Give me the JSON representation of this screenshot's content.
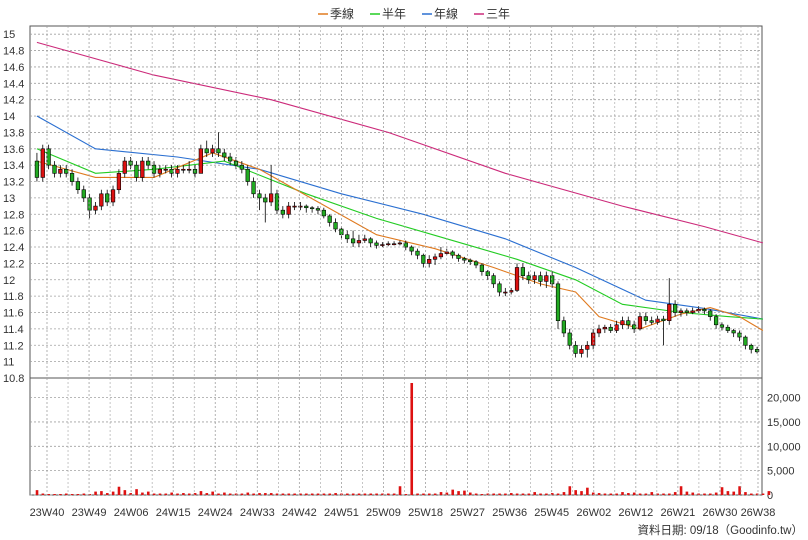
{
  "chart_data": {
    "type": "candlestick",
    "legend": {
      "placement": "top-center",
      "items": [
        {
          "label": "季線",
          "color": "#e07a1f"
        },
        {
          "label": "半年",
          "color": "#22cc22"
        },
        {
          "label": "年線",
          "color": "#2a6fd1"
        },
        {
          "label": "三年",
          "color": "#cc2a7a"
        }
      ]
    },
    "price_axis": {
      "ylim": [
        10.8,
        15.1
      ],
      "ticks": [
        "15",
        "14.8",
        "14.6",
        "14.4",
        "14.2",
        "14",
        "13.8",
        "13.6",
        "13.4",
        "13.2",
        "13",
        "12.8",
        "12.6",
        "12.4",
        "12.2",
        "12",
        "11.8",
        "11.6",
        "11.4",
        "11.2",
        "11",
        "10.8"
      ]
    },
    "volume_axis": {
      "ylim": [
        0,
        23000
      ],
      "ticks": [
        "20,000",
        "15,000",
        "10,000",
        "5,000",
        "0"
      ]
    },
    "x_ticks": [
      "23W40",
      "23W49",
      "24W06",
      "24W15",
      "24W24",
      "24W33",
      "24W42",
      "24W51",
      "25W09",
      "25W18",
      "25W27",
      "25W36",
      "25W45",
      "26W02",
      "26W12",
      "26W21",
      "26W30",
      "26W38"
    ],
    "colors": {
      "up": "#dd1111",
      "down": "#22aa22",
      "volume": "#dd1111",
      "grid": "#a0a0a0"
    },
    "grid": true,
    "footer": "資料日期: 09/18（Goodinfo.tw）",
    "candles": [
      [
        13.45,
        13.25,
        13.55,
        13.2
      ],
      [
        13.25,
        13.6,
        13.65,
        13.2
      ],
      [
        13.6,
        13.4,
        13.65,
        13.35
      ],
      [
        13.4,
        13.3,
        13.45,
        13.25
      ],
      [
        13.3,
        13.35,
        13.4,
        13.25
      ],
      [
        13.35,
        13.3,
        13.4,
        13.25
      ],
      [
        13.3,
        13.2,
        13.35,
        13.15
      ],
      [
        13.2,
        13.1,
        13.25,
        13.05
      ],
      [
        13.1,
        13.0,
        13.15,
        12.95
      ],
      [
        13.0,
        12.85,
        13.05,
        12.75
      ],
      [
        12.85,
        12.9,
        12.95,
        12.8
      ],
      [
        12.9,
        13.05,
        13.1,
        12.85
      ],
      [
        13.05,
        12.95,
        13.1,
        12.9
      ],
      [
        12.95,
        13.1,
        13.15,
        12.9
      ],
      [
        13.1,
        13.3,
        13.35,
        13.05
      ],
      [
        13.3,
        13.45,
        13.5,
        13.25
      ],
      [
        13.45,
        13.4,
        13.5,
        13.35
      ],
      [
        13.4,
        13.25,
        13.45,
        13.2
      ],
      [
        13.25,
        13.45,
        13.5,
        13.2
      ],
      [
        13.45,
        13.4,
        13.5,
        13.35
      ],
      [
        13.4,
        13.3,
        13.45,
        13.25
      ],
      [
        13.3,
        13.35,
        13.4,
        13.25
      ],
      [
        13.35,
        13.35,
        13.4,
        13.3
      ],
      [
        13.35,
        13.3,
        13.4,
        13.25
      ],
      [
        13.3,
        13.35,
        13.4,
        13.25
      ],
      [
        13.35,
        13.35,
        13.4,
        13.3
      ],
      [
        13.35,
        13.35,
        13.45,
        13.3
      ],
      [
        13.35,
        13.3,
        13.4,
        13.25
      ],
      [
        13.3,
        13.6,
        13.65,
        13.3
      ],
      [
        13.6,
        13.55,
        13.7,
        13.5
      ],
      [
        13.55,
        13.6,
        13.65,
        13.5
      ],
      [
        13.6,
        13.55,
        13.8,
        13.5
      ],
      [
        13.55,
        13.5,
        13.6,
        13.45
      ],
      [
        13.5,
        13.45,
        13.55,
        13.4
      ],
      [
        13.45,
        13.4,
        13.5,
        13.35
      ],
      [
        13.4,
        13.35,
        13.45,
        13.3
      ],
      [
        13.35,
        13.2,
        13.4,
        13.15
      ],
      [
        13.2,
        13.05,
        13.25,
        13.0
      ],
      [
        13.05,
        13.0,
        13.1,
        12.85
      ],
      [
        13.0,
        12.95,
        13.05,
        12.7
      ],
      [
        12.95,
        13.05,
        13.4,
        12.9
      ],
      [
        13.05,
        12.85,
        13.1,
        12.8
      ],
      [
        12.85,
        12.8,
        12.9,
        12.75
      ],
      [
        12.8,
        12.9,
        12.95,
        12.75
      ],
      [
        12.9,
        12.9,
        12.95,
        12.85
      ],
      [
        12.9,
        12.9,
        12.95,
        12.85
      ],
      [
        12.9,
        12.88,
        12.92,
        12.82
      ],
      [
        12.88,
        12.87,
        12.9,
        12.82
      ],
      [
        12.87,
        12.85,
        12.9,
        12.8
      ],
      [
        12.85,
        12.78,
        12.88,
        12.75
      ],
      [
        12.78,
        12.7,
        12.8,
        12.65
      ],
      [
        12.7,
        12.62,
        12.75,
        12.58
      ],
      [
        12.62,
        12.55,
        12.65,
        12.5
      ],
      [
        12.55,
        12.5,
        12.6,
        12.45
      ],
      [
        12.5,
        12.45,
        12.6,
        12.4
      ],
      [
        12.45,
        12.48,
        12.55,
        12.4
      ],
      [
        12.48,
        12.5,
        12.55,
        12.45
      ],
      [
        12.5,
        12.45,
        12.52,
        12.4
      ],
      [
        12.45,
        12.42,
        12.48,
        12.38
      ],
      [
        12.42,
        12.43,
        12.46,
        12.4
      ],
      [
        12.43,
        12.44,
        12.47,
        12.41
      ],
      [
        12.44,
        12.44,
        12.47,
        12.42
      ],
      [
        12.44,
        12.45,
        12.48,
        12.42
      ],
      [
        12.45,
        12.4,
        12.48,
        12.36
      ],
      [
        12.4,
        12.35,
        12.42,
        12.3
      ],
      [
        12.35,
        12.3,
        12.38,
        12.25
      ],
      [
        12.3,
        12.2,
        12.32,
        12.15
      ],
      [
        12.2,
        12.25,
        12.3,
        12.15
      ],
      [
        12.25,
        12.28,
        12.32,
        12.18
      ],
      [
        12.28,
        12.32,
        12.4,
        12.25
      ],
      [
        12.32,
        12.34,
        12.38,
        12.3
      ],
      [
        12.34,
        12.3,
        12.36,
        12.26
      ],
      [
        12.3,
        12.26,
        12.32,
        12.22
      ],
      [
        12.26,
        12.24,
        12.28,
        12.2
      ],
      [
        12.24,
        12.22,
        12.26,
        12.18
      ],
      [
        12.22,
        12.18,
        12.24,
        12.14
      ],
      [
        12.18,
        12.1,
        12.2,
        12.05
      ],
      [
        12.1,
        12.05,
        12.12,
        12.0
      ],
      [
        12.05,
        11.95,
        12.08,
        11.9
      ],
      [
        11.95,
        11.85,
        11.98,
        11.8
      ],
      [
        11.85,
        11.85,
        11.9,
        11.8
      ],
      [
        11.85,
        11.87,
        11.9,
        11.82
      ],
      [
        11.87,
        12.15,
        12.2,
        11.85
      ],
      [
        12.15,
        12.05,
        12.2,
        12.0
      ],
      [
        12.05,
        12.0,
        12.1,
        11.95
      ],
      [
        12.0,
        12.05,
        12.1,
        11.95
      ],
      [
        12.05,
        11.98,
        12.1,
        11.92
      ],
      [
        11.98,
        12.05,
        12.1,
        11.9
      ],
      [
        12.05,
        11.95,
        12.1,
        11.9
      ],
      [
        11.95,
        11.5,
        11.98,
        11.4
      ],
      [
        11.5,
        11.35,
        11.55,
        11.3
      ],
      [
        11.35,
        11.2,
        11.4,
        11.15
      ],
      [
        11.2,
        11.1,
        11.25,
        11.05
      ],
      [
        11.1,
        11.15,
        11.2,
        11.05
      ],
      [
        11.15,
        11.2,
        11.25,
        11.05
      ],
      [
        11.2,
        11.35,
        11.4,
        11.15
      ],
      [
        11.35,
        11.4,
        11.45,
        11.3
      ],
      [
        11.4,
        11.42,
        11.45,
        11.35
      ],
      [
        11.42,
        11.38,
        11.46,
        11.35
      ],
      [
        11.38,
        11.45,
        11.5,
        11.35
      ],
      [
        11.45,
        11.5,
        11.55,
        11.4
      ],
      [
        11.5,
        11.45,
        11.55,
        11.4
      ],
      [
        11.45,
        11.4,
        11.5,
        11.35
      ],
      [
        11.4,
        11.55,
        11.6,
        11.38
      ],
      [
        11.55,
        11.5,
        11.6,
        11.45
      ],
      [
        11.5,
        11.48,
        11.55,
        11.45
      ],
      [
        11.48,
        11.52,
        11.56,
        11.45
      ],
      [
        11.52,
        11.5,
        11.56,
        11.2
      ],
      [
        11.5,
        11.7,
        12.02,
        11.45
      ],
      [
        11.7,
        11.6,
        11.75,
        11.55
      ],
      [
        11.6,
        11.62,
        11.65,
        11.55
      ],
      [
        11.62,
        11.6,
        11.65,
        11.56
      ],
      [
        11.6,
        11.62,
        11.66,
        11.58
      ],
      [
        11.62,
        11.64,
        11.68,
        11.6
      ],
      [
        11.64,
        11.62,
        11.66,
        11.58
      ],
      [
        11.62,
        11.55,
        11.64,
        11.5
      ],
      [
        11.55,
        11.45,
        11.58,
        11.4
      ],
      [
        11.45,
        11.42,
        11.48,
        11.38
      ],
      [
        11.42,
        11.38,
        11.45,
        11.35
      ],
      [
        11.38,
        11.35,
        11.4,
        11.3
      ],
      [
        11.35,
        11.3,
        11.38,
        11.25
      ],
      [
        11.3,
        11.2,
        11.32,
        11.15
      ],
      [
        11.2,
        11.15,
        11.22,
        11.1
      ],
      [
        11.15,
        11.12,
        11.18,
        11.1
      ]
    ],
    "volume": [
      1000,
      300,
      200,
      200,
      200,
      300,
      200,
      200,
      300,
      200,
      700,
      800,
      400,
      700,
      1700,
      1000,
      400,
      1200,
      500,
      700,
      300,
      300,
      300,
      500,
      300,
      400,
      300,
      400,
      800,
      400,
      700,
      300,
      500,
      300,
      300,
      300,
      500,
      300,
      400,
      400,
      400,
      300,
      300,
      300,
      300,
      300,
      300,
      300,
      300,
      300,
      300,
      400,
      300,
      300,
      300,
      300,
      300,
      300,
      300,
      300,
      300,
      300,
      1800,
      200,
      23000,
      300,
      300,
      300,
      300,
      600,
      500,
      1100,
      800,
      900,
      500,
      300,
      200,
      300,
      300,
      300,
      300,
      400,
      300,
      300,
      300,
      600,
      300,
      300,
      400,
      300,
      600,
      1800,
      1000,
      800,
      1500,
      500,
      400,
      300,
      300,
      300,
      600,
      400,
      500,
      300,
      300,
      600,
      300,
      300,
      300,
      600,
      1800,
      700,
      500,
      300,
      300,
      300,
      500,
      1600,
      800,
      700,
      1800,
      600,
      300,
      300,
      300,
      800
    ],
    "ma_quarter": [
      [
        0,
        13.45
      ],
      [
        10,
        13.25
      ],
      [
        20,
        13.25
      ],
      [
        30,
        13.55
      ],
      [
        38,
        13.35
      ],
      [
        48,
        12.95
      ],
      [
        58,
        12.55
      ],
      [
        68,
        12.38
      ],
      [
        78,
        12.15
      ],
      [
        86,
        11.95
      ],
      [
        92,
        11.85
      ],
      [
        96,
        11.55
      ],
      [
        103,
        11.4
      ],
      [
        110,
        11.58
      ],
      [
        115,
        11.66
      ],
      [
        120,
        11.55
      ],
      [
        124,
        11.38
      ]
    ],
    "ma_half": [
      [
        0,
        13.6
      ],
      [
        10,
        13.3
      ],
      [
        20,
        13.35
      ],
      [
        32,
        13.45
      ],
      [
        46,
        13.05
      ],
      [
        58,
        12.75
      ],
      [
        70,
        12.5
      ],
      [
        82,
        12.25
      ],
      [
        92,
        12.0
      ],
      [
        100,
        11.7
      ],
      [
        110,
        11.6
      ],
      [
        118,
        11.55
      ],
      [
        124,
        11.52
      ]
    ],
    "ma_year": [
      [
        0,
        14.0
      ],
      [
        10,
        13.6
      ],
      [
        24,
        13.5
      ],
      [
        38,
        13.35
      ],
      [
        52,
        13.05
      ],
      [
        66,
        12.8
      ],
      [
        80,
        12.5
      ],
      [
        92,
        12.15
      ],
      [
        104,
        11.75
      ],
      [
        114,
        11.65
      ],
      [
        124,
        11.52
      ]
    ],
    "ma_3year": [
      [
        0,
        14.9
      ],
      [
        20,
        14.5
      ],
      [
        40,
        14.2
      ],
      [
        60,
        13.8
      ],
      [
        80,
        13.3
      ],
      [
        100,
        12.9
      ],
      [
        114,
        12.65
      ],
      [
        124,
        12.45
      ]
    ]
  }
}
